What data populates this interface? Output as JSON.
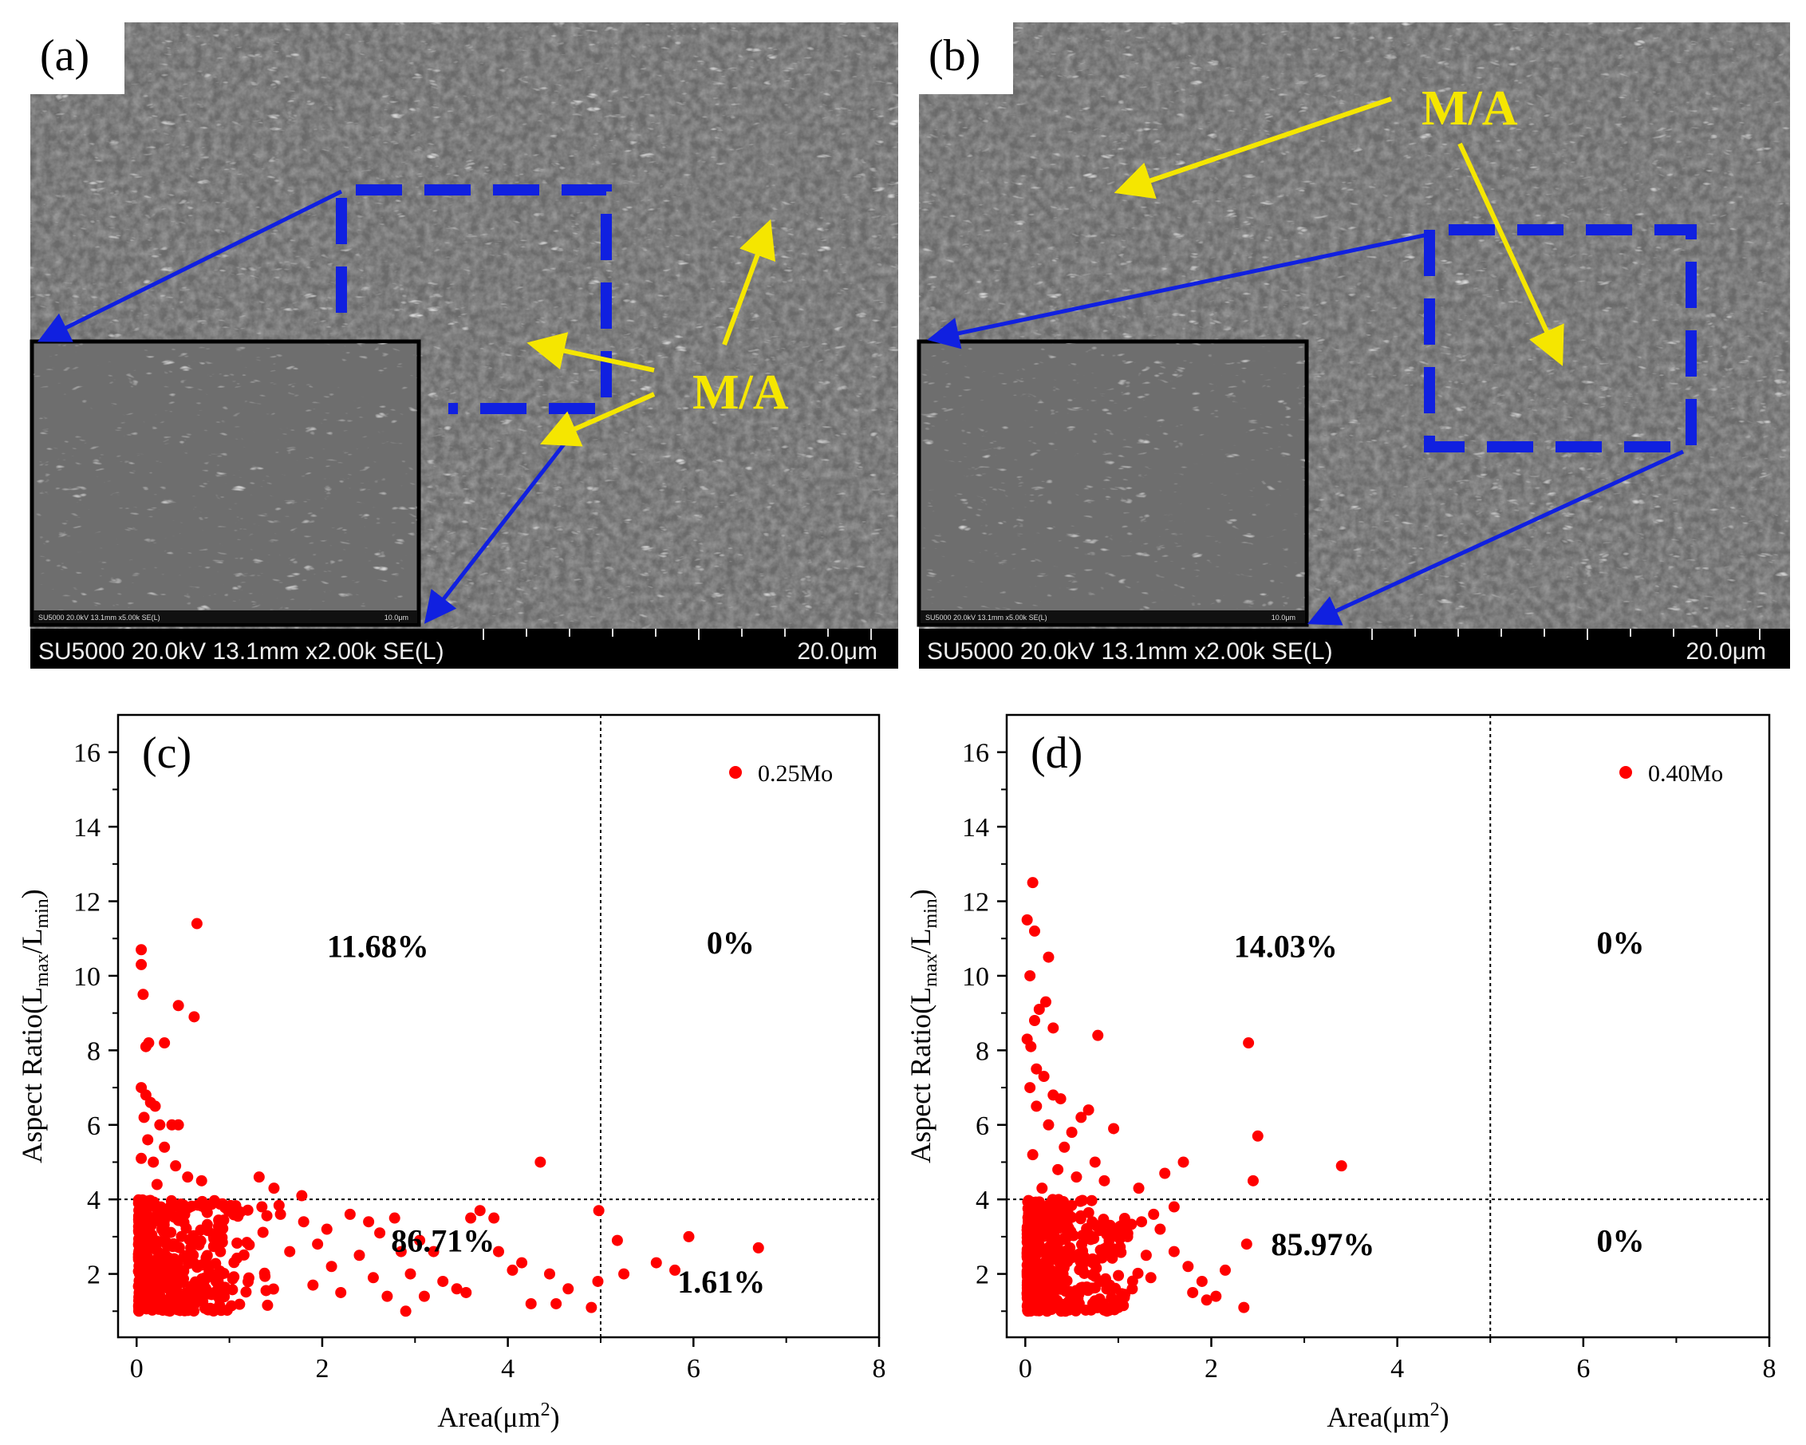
{
  "panels": {
    "a": {
      "label": "(a)",
      "ma_label": "M/A",
      "info_bar": "SU5000 20.0kV 13.1mm x2.00k SE(L)",
      "scale_bar": "20.0μm",
      "inset_info": "SU5000 20.0kV 13.1mm x5.00k SE(L)",
      "inset_scale": "10.0μm"
    },
    "b": {
      "label": "(b)",
      "ma_label": "M/A",
      "info_bar": "SU5000 20.0kV 13.1mm x2.00k SE(L)",
      "scale_bar": "20.0μm",
      "inset_info": "SU5000 20.0kV 13.1mm x5.00k SE(L)",
      "inset_scale": "10.0μm"
    }
  },
  "colors": {
    "point": "#ff0000",
    "arrow_yellow": "#f5e600",
    "arrow_blue": "#1020e0",
    "box_blue": "#1020e0",
    "sem_bg": "#6a6a6a"
  },
  "chart_data": [
    {
      "id": "c",
      "type": "scatter",
      "panel_label": "(c)",
      "legend": "0.25Mo",
      "xlabel_text": "Area(μm",
      "xlabel_sup": "2",
      "xlabel_end": ")",
      "ylabel_text": "Aspect Ratio(L",
      "ylabel_sub1": "max",
      "ylabel_mid": "/L",
      "ylabel_sub2": "min",
      "ylabel_end": ")",
      "xlim": [
        -0.2,
        8
      ],
      "ylim": [
        0.3,
        17
      ],
      "xticks": [
        0,
        2,
        4,
        6,
        8
      ],
      "yticks": [
        2,
        4,
        6,
        8,
        10,
        12,
        14,
        16
      ],
      "thresholds": {
        "x": 5,
        "y": 4
      },
      "quadrant_labels": {
        "upper_left": "11.68%",
        "upper_right": "0%",
        "lower_left": "86.71%",
        "lower_right": "1.61%"
      },
      "points": [
        [
          0.05,
          10.7
        ],
        [
          0.05,
          10.3
        ],
        [
          0.07,
          9.5
        ],
        [
          0.1,
          8.1
        ],
        [
          0.13,
          8.2
        ],
        [
          0.3,
          8.2
        ],
        [
          0.45,
          9.2
        ],
        [
          0.62,
          8.9
        ],
        [
          0.65,
          11.4
        ],
        [
          0.05,
          7.0
        ],
        [
          0.1,
          6.8
        ],
        [
          0.15,
          6.6
        ],
        [
          0.2,
          6.5
        ],
        [
          0.08,
          6.2
        ],
        [
          0.25,
          6.0
        ],
        [
          0.38,
          6.0
        ],
        [
          0.45,
          6.0
        ],
        [
          0.12,
          5.6
        ],
        [
          0.3,
          5.4
        ],
        [
          0.05,
          5.1
        ],
        [
          0.18,
          5.0
        ],
        [
          0.42,
          4.9
        ],
        [
          0.55,
          4.6
        ],
        [
          0.7,
          4.5
        ],
        [
          0.22,
          4.4
        ],
        [
          1.32,
          4.6
        ],
        [
          1.48,
          4.3
        ],
        [
          1.78,
          4.1
        ],
        [
          1.35,
          3.8
        ],
        [
          1.55,
          3.6
        ],
        [
          1.8,
          3.4
        ],
        [
          2.05,
          3.2
        ],
        [
          2.3,
          3.6
        ],
        [
          2.5,
          3.4
        ],
        [
          2.62,
          3.1
        ],
        [
          2.78,
          3.5
        ],
        [
          2.85,
          2.6
        ],
        [
          3.05,
          2.9
        ],
        [
          3.2,
          2.6
        ],
        [
          3.3,
          1.8
        ],
        [
          3.45,
          1.6
        ],
        [
          3.6,
          3.5
        ],
        [
          3.7,
          3.7
        ],
        [
          3.85,
          3.5
        ],
        [
          3.9,
          2.6
        ],
        [
          4.05,
          2.1
        ],
        [
          4.15,
          2.3
        ],
        [
          4.25,
          1.2
        ],
        [
          4.35,
          5.0
        ],
        [
          4.45,
          2.0
        ],
        [
          4.52,
          1.2
        ],
        [
          4.65,
          1.6
        ],
        [
          4.9,
          1.1
        ],
        [
          4.97,
          1.8
        ],
        [
          4.98,
          3.7
        ],
        [
          5.18,
          2.9
        ],
        [
          5.25,
          2.0
        ],
        [
          5.6,
          2.3
        ],
        [
          5.8,
          2.1
        ],
        [
          5.95,
          3.0
        ],
        [
          6.7,
          2.7
        ],
        [
          2.1,
          2.2
        ],
        [
          2.4,
          2.5
        ],
        [
          2.55,
          1.9
        ],
        [
          2.7,
          1.4
        ],
        [
          2.9,
          1.0
        ],
        [
          2.95,
          2.0
        ],
        [
          3.1,
          1.4
        ],
        [
          3.55,
          1.5
        ],
        [
          1.9,
          1.7
        ],
        [
          2.2,
          1.5
        ],
        [
          1.65,
          2.6
        ],
        [
          1.95,
          2.8
        ]
      ],
      "cluster": {
        "x_range": [
          0.02,
          1.6
        ],
        "y_range": [
          1.0,
          4.0
        ],
        "count": 420,
        "seed": 11,
        "decay": 0.55
      }
    },
    {
      "id": "d",
      "type": "scatter",
      "panel_label": "(d)",
      "legend": "0.40Mo",
      "xlabel_text": "Area(μm",
      "xlabel_sup": "2",
      "xlabel_end": ")",
      "ylabel_text": "Aspect Ratio(L",
      "ylabel_sub1": "max",
      "ylabel_mid": "/L",
      "ylabel_sub2": "min",
      "ylabel_end": ")",
      "xlim": [
        -0.2,
        8
      ],
      "ylim": [
        0.3,
        17
      ],
      "xticks": [
        0,
        2,
        4,
        6,
        8
      ],
      "yticks": [
        2,
        4,
        6,
        8,
        10,
        12,
        14,
        16
      ],
      "thresholds": {
        "x": 5,
        "y": 4
      },
      "quadrant_labels": {
        "upper_left": "14.03%",
        "upper_right": "0%",
        "lower_left": "85.97%",
        "lower_right": "0%"
      },
      "points": [
        [
          0.08,
          12.5
        ],
        [
          0.02,
          11.5
        ],
        [
          0.1,
          11.2
        ],
        [
          0.25,
          10.5
        ],
        [
          0.05,
          10.0
        ],
        [
          0.22,
          9.3
        ],
        [
          0.15,
          9.1
        ],
        [
          0.1,
          8.8
        ],
        [
          0.3,
          8.6
        ],
        [
          0.02,
          8.3
        ],
        [
          0.06,
          8.1
        ],
        [
          0.78,
          8.4
        ],
        [
          2.4,
          8.2
        ],
        [
          0.12,
          7.5
        ],
        [
          0.2,
          7.3
        ],
        [
          0.05,
          7.0
        ],
        [
          0.3,
          6.8
        ],
        [
          0.38,
          6.7
        ],
        [
          0.12,
          6.5
        ],
        [
          0.6,
          6.2
        ],
        [
          0.25,
          6.0
        ],
        [
          0.5,
          5.8
        ],
        [
          0.95,
          5.9
        ],
        [
          0.68,
          6.4
        ],
        [
          0.42,
          5.4
        ],
        [
          0.08,
          5.2
        ],
        [
          0.75,
          5.0
        ],
        [
          0.35,
          4.8
        ],
        [
          0.55,
          4.6
        ],
        [
          0.85,
          4.5
        ],
        [
          0.18,
          4.3
        ],
        [
          1.22,
          4.3
        ],
        [
          1.5,
          4.7
        ],
        [
          1.38,
          3.6
        ],
        [
          1.45,
          3.2
        ],
        [
          1.6,
          2.6
        ],
        [
          1.7,
          5.0
        ],
        [
          1.6,
          3.8
        ],
        [
          1.75,
          2.2
        ],
        [
          1.8,
          1.5
        ],
        [
          1.9,
          1.8
        ],
        [
          1.95,
          1.3
        ],
        [
          2.05,
          1.4
        ],
        [
          2.15,
          2.1
        ],
        [
          2.35,
          1.1
        ],
        [
          2.38,
          2.8
        ],
        [
          2.45,
          4.5
        ],
        [
          2.5,
          5.7
        ],
        [
          3.4,
          4.9
        ],
        [
          1.1,
          3.0
        ],
        [
          1.3,
          2.5
        ],
        [
          1.15,
          1.6
        ],
        [
          1.35,
          1.9
        ],
        [
          1.25,
          3.4
        ],
        [
          1.0,
          1.1
        ]
      ],
      "cluster": {
        "x_range": [
          0.02,
          1.35
        ],
        "y_range": [
          1.0,
          4.0
        ],
        "count": 460,
        "seed": 29,
        "decay": 0.5
      }
    }
  ]
}
